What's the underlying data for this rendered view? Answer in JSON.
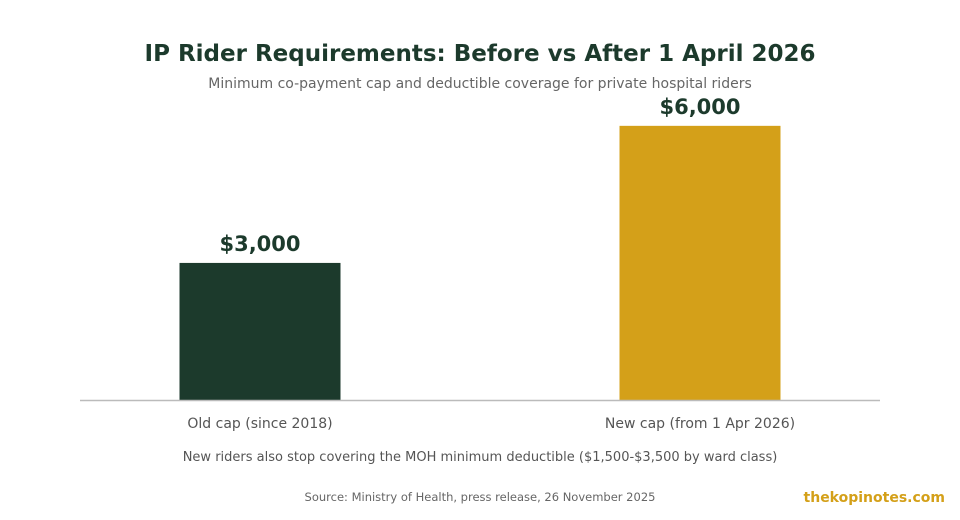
{
  "chart_data": {
    "type": "bar",
    "title": "IP Rider Requirements: Before vs After 1 April 2026",
    "subtitle": "Minimum co-payment cap and deductible coverage for private hospital riders",
    "categories": [
      "Old cap (since 2018)",
      "New cap (from 1 Apr 2026)"
    ],
    "values": [
      3000,
      6000
    ],
    "data_labels": [
      "$3,000",
      "$6,000"
    ],
    "colors": [
      "#1c3a2c",
      "#d4a019"
    ],
    "ylim": [
      0,
      6500
    ],
    "grid": false,
    "legend": "none",
    "note": "New riders also stop covering the MOH minimum deductible ($1,500-$3,500 by ward class)"
  },
  "footer": {
    "source": "Source: Ministry of Health, press release, 26 November 2025",
    "brand": "thekopinotes.com"
  }
}
